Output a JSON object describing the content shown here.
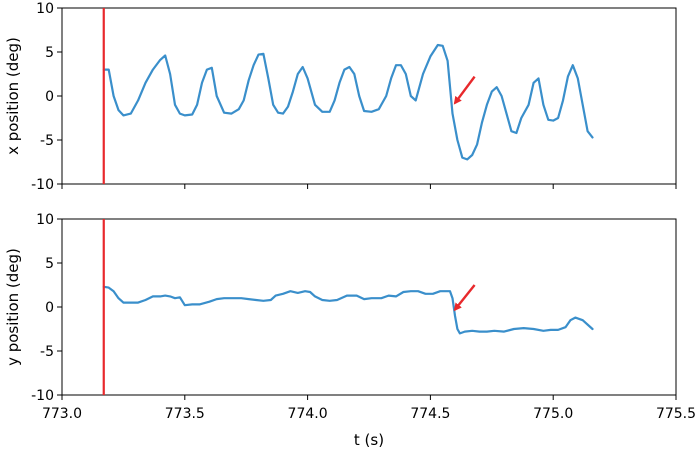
{
  "colors": {
    "series": "#3a8fcb",
    "event_line": "#e8292c",
    "arrow": "#e8292c"
  },
  "chart_data": [
    {
      "type": "line",
      "xlabel": "",
      "ylabel": "x position (deg)",
      "xlim": [
        773.0,
        775.5
      ],
      "ylim": [
        -10,
        10
      ],
      "xticks": [
        773.0,
        773.5,
        774.0,
        774.5,
        775.0,
        775.5
      ],
      "yticks": [
        -10,
        -5,
        0,
        5,
        10
      ],
      "tick_labels_x_visible": false,
      "vline_x": 773.17,
      "annotation_arrow": {
        "from": [
          774.68,
          2.2
        ],
        "to": [
          774.6,
          -0.8
        ]
      },
      "series": [
        {
          "x": [
            773.17,
            773.19,
            773.21,
            773.23,
            773.25,
            773.28,
            773.31,
            773.34,
            773.37,
            773.4,
            773.42,
            773.44,
            773.46,
            773.48,
            773.5,
            773.53,
            773.55,
            773.57,
            773.59,
            773.61,
            773.63,
            773.66,
            773.69,
            773.72,
            773.74,
            773.76,
            773.78,
            773.8,
            773.82,
            773.84,
            773.86,
            773.88,
            773.9,
            773.92,
            773.94,
            773.96,
            773.98,
            774.0,
            774.03,
            774.06,
            774.09,
            774.11,
            774.13,
            774.15,
            774.17,
            774.19,
            774.21,
            774.23,
            774.26,
            774.29,
            774.32,
            774.34,
            774.36,
            774.38,
            774.4,
            774.42,
            774.44,
            774.47,
            774.5,
            774.53,
            774.55,
            774.57,
            774.59,
            774.61,
            774.63,
            774.65,
            774.67,
            774.69,
            774.71,
            774.73,
            774.75,
            774.77,
            774.79,
            774.81,
            774.83,
            774.85,
            774.87,
            774.9,
            774.92,
            774.94,
            774.96,
            774.98,
            775.0,
            775.02,
            775.04,
            775.06,
            775.08,
            775.1,
            775.12,
            775.14,
            775.16
          ],
          "values": [
            3.0,
            3.0,
            0.0,
            -1.6,
            -2.2,
            -2.0,
            -0.5,
            1.5,
            3.0,
            4.1,
            4.6,
            2.5,
            -1.0,
            -2.0,
            -2.2,
            -2.1,
            -1.0,
            1.5,
            3.0,
            3.2,
            0.0,
            -1.9,
            -2.0,
            -1.5,
            -0.5,
            1.8,
            3.5,
            4.7,
            4.8,
            2.0,
            -1.0,
            -1.9,
            -2.0,
            -1.2,
            0.5,
            2.5,
            3.3,
            2.0,
            -1.0,
            -1.8,
            -1.8,
            -0.5,
            1.5,
            3.0,
            3.3,
            2.5,
            0.0,
            -1.7,
            -1.8,
            -1.5,
            0.0,
            2.0,
            3.5,
            3.5,
            2.5,
            0.0,
            -0.5,
            2.5,
            4.5,
            5.8,
            5.7,
            4.0,
            -2.0,
            -5.0,
            -7.0,
            -7.2,
            -6.7,
            -5.5,
            -3.0,
            -1.0,
            0.5,
            1.0,
            0.0,
            -2.0,
            -4.0,
            -4.2,
            -2.5,
            -1.0,
            1.5,
            2.0,
            -1.0,
            -2.7,
            -2.8,
            -2.5,
            -0.5,
            2.2,
            3.5,
            2.0,
            -1.0,
            -4.0,
            -4.7
          ]
        }
      ]
    },
    {
      "type": "line",
      "xlabel": "t (s)",
      "ylabel": "y position (deg)",
      "xlim": [
        773.0,
        775.5
      ],
      "ylim": [
        -10,
        10
      ],
      "xticks": [
        773.0,
        773.5,
        774.0,
        774.5,
        775.0,
        775.5
      ],
      "xtick_labels": [
        "773.0",
        "773.5",
        "774.0",
        "774.5",
        "775.0",
        "775.5"
      ],
      "yticks": [
        -10,
        -5,
        0,
        5,
        10
      ],
      "tick_labels_x_visible": true,
      "vline_x": 773.17,
      "annotation_arrow": {
        "from": [
          774.68,
          2.5
        ],
        "to": [
          774.6,
          -0.3
        ]
      },
      "series": [
        {
          "x": [
            773.17,
            773.19,
            773.21,
            773.23,
            773.25,
            773.28,
            773.31,
            773.34,
            773.37,
            773.4,
            773.42,
            773.44,
            773.46,
            773.48,
            773.5,
            773.53,
            773.56,
            773.6,
            773.63,
            773.66,
            773.7,
            773.73,
            773.76,
            773.79,
            773.82,
            773.85,
            773.87,
            773.9,
            773.93,
            773.96,
            773.99,
            774.01,
            774.03,
            774.06,
            774.09,
            774.12,
            774.16,
            774.2,
            774.23,
            774.26,
            774.3,
            774.33,
            774.36,
            774.39,
            774.42,
            774.45,
            774.48,
            774.51,
            774.54,
            774.56,
            774.58,
            774.59,
            774.6,
            774.61,
            774.62,
            774.64,
            774.67,
            774.7,
            774.73,
            774.76,
            774.8,
            774.84,
            774.88,
            774.92,
            774.96,
            774.99,
            775.02,
            775.05,
            775.07,
            775.09,
            775.12,
            775.16
          ],
          "values": [
            2.3,
            2.2,
            1.8,
            1.0,
            0.5,
            0.5,
            0.5,
            0.8,
            1.2,
            1.2,
            1.3,
            1.2,
            1.0,
            1.1,
            0.2,
            0.3,
            0.3,
            0.6,
            0.9,
            1.0,
            1.0,
            1.0,
            0.9,
            0.8,
            0.7,
            0.8,
            1.3,
            1.5,
            1.8,
            1.6,
            1.8,
            1.7,
            1.2,
            0.8,
            0.7,
            0.8,
            1.3,
            1.3,
            0.9,
            1.0,
            1.0,
            1.3,
            1.2,
            1.7,
            1.8,
            1.8,
            1.5,
            1.5,
            1.8,
            1.8,
            1.8,
            1.0,
            -1.0,
            -2.5,
            -3.0,
            -2.8,
            -2.7,
            -2.8,
            -2.8,
            -2.7,
            -2.8,
            -2.5,
            -2.4,
            -2.5,
            -2.7,
            -2.6,
            -2.6,
            -2.3,
            -1.5,
            -1.2,
            -1.5,
            -2.5
          ]
        }
      ]
    }
  ]
}
